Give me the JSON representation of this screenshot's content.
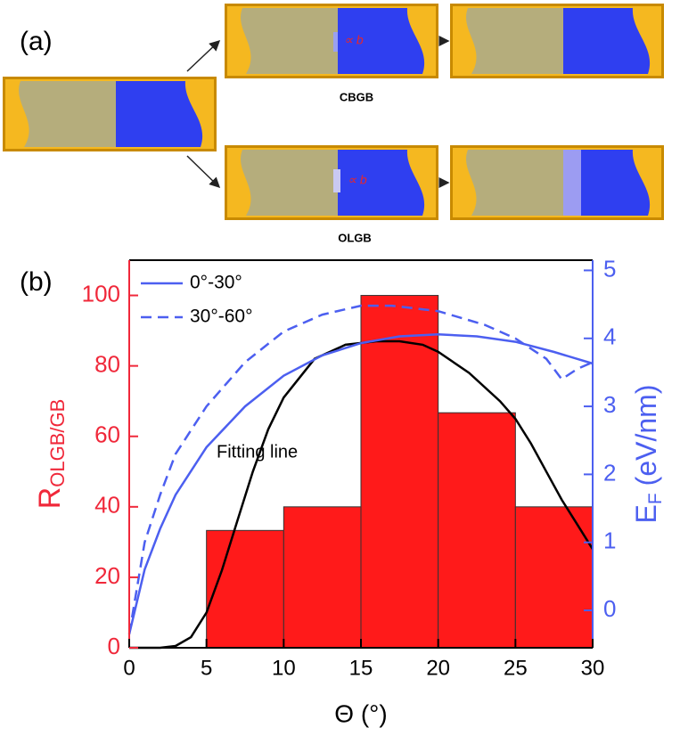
{
  "panel_a": {
    "label": "(a)",
    "top_label": "CBGB",
    "bottom_label": "OLGB",
    "gap_labels": [
      "∝ b",
      "∝ b"
    ]
  },
  "chart_data": {
    "type": "histogram",
    "panel_label": "(b)",
    "x_label": "Θ (°)",
    "y_label": "R",
    "y_label_sub": "OLGB/GB",
    "y2_label": "E",
    "y2_label_sub": "F",
    "y2_label_unit": "(eV/nm)",
    "bins": [
      5,
      10,
      15,
      20,
      25,
      30
    ],
    "values": [
      33.3,
      40,
      100,
      66.7,
      40
    ],
    "color": "#ff1a1a",
    "xlim": [
      0,
      30
    ],
    "xticks": [
      0,
      5,
      10,
      15,
      20,
      25,
      30
    ],
    "ylim": [
      0,
      110
    ],
    "yticks": [
      0,
      20,
      40,
      60,
      80,
      100
    ],
    "y_color": "#f0283a",
    "y2lim": [
      -0.55,
      5.15
    ],
    "y2ticks": [
      0,
      1,
      2,
      3,
      4,
      5
    ],
    "y2_color": "#4c5ff0",
    "series": [
      {
        "name": "0°-30°",
        "color": "#4c5ff0",
        "style": "solid",
        "axis": "y2",
        "x": [
          0,
          1,
          2,
          3,
          5,
          7.5,
          10,
          12.5,
          15,
          17.5,
          20,
          22.5,
          25,
          27.5,
          30
        ],
        "values": [
          -0.35,
          0.6,
          1.2,
          1.7,
          2.4,
          3.0,
          3.45,
          3.75,
          3.93,
          4.03,
          4.06,
          4.03,
          3.95,
          3.8,
          3.63
        ]
      },
      {
        "name": "30°-60°",
        "color": "#4c5ff0",
        "style": "dashed",
        "axis": "y2",
        "x": [
          0,
          1,
          2,
          3,
          5,
          7.5,
          10,
          12.5,
          15,
          17,
          20,
          23,
          25,
          27,
          28,
          29,
          30
        ],
        "values": [
          -0.35,
          1.0,
          1.7,
          2.3,
          3.0,
          3.65,
          4.1,
          4.35,
          4.48,
          4.48,
          4.4,
          4.2,
          4.0,
          3.7,
          3.4,
          3.55,
          3.65
        ]
      }
    ],
    "fit": {
      "name": "Fitting line",
      "color": "#000000",
      "x": [
        0,
        2,
        3,
        4,
        5,
        6,
        7,
        8,
        9,
        10,
        12,
        14,
        16,
        17.5,
        19,
        20,
        22,
        24,
        25,
        26,
        27,
        28,
        29,
        30
      ],
      "values": [
        0,
        0,
        0.5,
        3,
        10,
        22,
        36,
        50,
        62,
        71,
        82,
        86,
        87,
        87,
        86,
        84,
        78,
        70,
        65,
        58,
        50,
        42,
        35,
        28
      ]
    }
  }
}
